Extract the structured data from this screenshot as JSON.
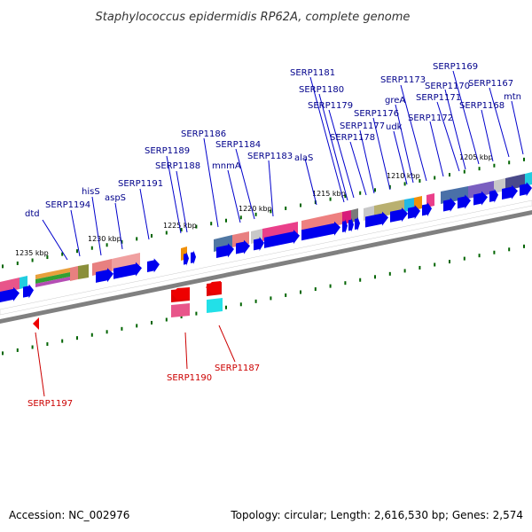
{
  "title": "Staphylococcus epidermidis RP62A, complete genome",
  "footer": {
    "accession": "Accession: NC_002976",
    "topology": "Topology: circular; Length: 2,616,530 bp; Genes: 2,574"
  },
  "colors": {
    "label_forward": "#00008b",
    "label_reverse": "#cc0000",
    "forward_arrow": "#0000ee",
    "reverse_arrow": "#ee0000",
    "backbone": "#808080",
    "tick": "#006400"
  },
  "kbp_labels": [
    "1235 kbp",
    "1230 kbp",
    "1225 kbp",
    "1220 kbp",
    "1215 kbp",
    "1210 kbp",
    "1205 kbp"
  ],
  "forward_genes": [
    "dtd",
    "SERP1194",
    "hisS",
    "aspS",
    "SERP1191",
    "SERP1189",
    "SERP1188",
    "SERP1186",
    "mnmA",
    "SERP1184",
    "SERP1183",
    "alaS",
    "SERP1181",
    "SERP1180",
    "SERP1179",
    "SERP1178",
    "SERP1177",
    "SERP1176",
    "udk",
    "greA",
    "SERP1173",
    "SERP1172",
    "SERP1171",
    "SERP1170",
    "SERP1169",
    "SERP1168",
    "SERP1167",
    "mtn"
  ],
  "reverse_genes": [
    "SERP1197",
    "SERP1190",
    "SERP1187"
  ]
}
